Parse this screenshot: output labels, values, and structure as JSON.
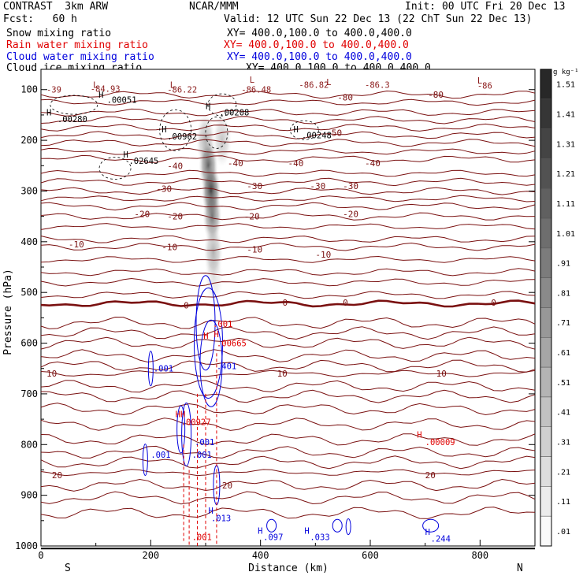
{
  "header": {
    "model": "CONTRAST  3km ARW",
    "center": "NCAR/MMM",
    "init": "Init: 00 UTC Fri 20 Dec 13",
    "fcst": "Fcst:   60 h",
    "valid": "Valid: 12 UTC Sun 22 Dec 13 (22 ChT Sun 22 Dec 13)"
  },
  "fields": [
    {
      "name": "Snow mixing ratio",
      "xy": "XY= 400.0,100.0 to 400.0,400.0",
      "color": "#000000"
    },
    {
      "name": "Rain water mixing ratio",
      "xy": "XY= 400.0,100.0 to 400.0,400.0",
      "color": "#e00000"
    },
    {
      "name": "Cloud water mixing ratio",
      "xy": "XY= 400.0,100.0 to 400.0,400.0",
      "color": "#0000dd"
    },
    {
      "name": "Cloud ice mixing ratio",
      "xy": "XY= 400.0,100.0 to 400.0,400.0",
      "color": "#000000"
    }
  ],
  "chart_data": {
    "type": "contour",
    "xlabel": "Distance (km)",
    "ylabel": "Pressure (hPa)",
    "xlim": [
      0,
      900
    ],
    "ylim": [
      1000,
      60
    ],
    "x_ticks": [
      0,
      200,
      400,
      600,
      800
    ],
    "y_ticks": [
      100,
      200,
      300,
      400,
      500,
      600,
      700,
      800,
      900,
      1000
    ],
    "left_end_label": "S",
    "right_end_label": "N",
    "temperature_isotherms": [
      {
        "label": "0",
        "p": 522,
        "bold": true
      },
      {
        "label": "-10",
        "p": 435
      },
      {
        "label": "-20",
        "p": 370
      },
      {
        "label": "-30",
        "p": 315
      },
      {
        "label": "-40",
        "p": 265
      },
      {
        "label": "-50",
        "p": 222
      },
      {
        "label": "-80",
        "p": 125
      },
      {
        "label": "10",
        "p": 660
      },
      {
        "label": "20",
        "p": 855
      }
    ],
    "temperature_labels": [
      {
        "text": "-10",
        "x": 50,
        "p": 405
      },
      {
        "text": "-10",
        "x": 220,
        "p": 410
      },
      {
        "text": "-10",
        "x": 375,
        "p": 415
      },
      {
        "text": "-10",
        "x": 500,
        "p": 425
      },
      {
        "text": "-20",
        "x": 170,
        "p": 345
      },
      {
        "text": "-20",
        "x": 230,
        "p": 350
      },
      {
        "text": "-20",
        "x": 370,
        "p": 350
      },
      {
        "text": "-20",
        "x": 550,
        "p": 345
      },
      {
        "text": "-30",
        "x": 210,
        "p": 295
      },
      {
        "text": "-30",
        "x": 375,
        "p": 290
      },
      {
        "text": "-30",
        "x": 490,
        "p": 290
      },
      {
        "text": "-30",
        "x": 550,
        "p": 290
      },
      {
        "text": "-40",
        "x": 230,
        "p": 250
      },
      {
        "text": "-40",
        "x": 340,
        "p": 245
      },
      {
        "text": "-40",
        "x": 450,
        "p": 245
      },
      {
        "text": "-40",
        "x": 590,
        "p": 245
      },
      {
        "text": "-50",
        "x": 520,
        "p": 185
      },
      {
        "text": "-80",
        "x": 540,
        "p": 115
      },
      {
        "text": "-80",
        "x": 705,
        "p": 110
      },
      {
        "text": "0",
        "x": 260,
        "p": 525
      },
      {
        "text": "0",
        "x": 440,
        "p": 520
      },
      {
        "text": "0",
        "x": 550,
        "p": 520
      },
      {
        "text": "0",
        "x": 820,
        "p": 520
      },
      {
        "text": "10",
        "x": 10,
        "p": 660
      },
      {
        "text": "10",
        "x": 430,
        "p": 660
      },
      {
        "text": "10",
        "x": 720,
        "p": 660
      },
      {
        "text": "20",
        "x": 20,
        "p": 860
      },
      {
        "text": "20",
        "x": 330,
        "p": 880
      },
      {
        "text": "20",
        "x": 700,
        "p": 860
      }
    ],
    "extrema_labels": [
      {
        "text": "L",
        "x": 95,
        "p": 90,
        "color": "#8b1a1a"
      },
      {
        "text": "L",
        "x": 235,
        "p": 90,
        "color": "#8b1a1a"
      },
      {
        "text": "L",
        "x": 380,
        "p": 80,
        "color": "#8b1a1a"
      },
      {
        "text": "L",
        "x": 520,
        "p": 85,
        "color": "#8b1a1a"
      },
      {
        "text": "L",
        "x": 795,
        "p": 82,
        "color": "#8b1a1a"
      },
      {
        "text": "-39",
        "x": 10,
        "p": 100,
        "color": "#8b1a1a"
      },
      {
        "text": "-84.93",
        "x": 90,
        "p": 98,
        "color": "#8b1a1a"
      },
      {
        "text": "-86.22",
        "x": 230,
        "p": 100,
        "color": "#8b1a1a"
      },
      {
        "text": "-86.48",
        "x": 365,
        "p": 100,
        "color": "#8b1a1a"
      },
      {
        "text": "-86.82",
        "x": 470,
        "p": 90,
        "color": "#8b1a1a"
      },
      {
        "text": "-86.3",
        "x": 590,
        "p": 90,
        "color": "#8b1a1a"
      },
      {
        "text": "-86",
        "x": 795,
        "p": 92,
        "color": "#8b1a1a"
      },
      {
        "text": "H",
        "x": 105,
        "p": 110,
        "color": "#000000"
      },
      {
        "text": ".00051",
        "x": 120,
        "p": 120,
        "color": "#000000"
      },
      {
        "text": "H",
        "x": 10,
        "p": 145,
        "color": "#000000"
      },
      {
        "text": ".00280",
        "x": 30,
        "p": 158,
        "color": "#000000"
      },
      {
        "text": "H",
        "x": 300,
        "p": 132,
        "color": "#000000"
      },
      {
        "text": ".00208",
        "x": 325,
        "p": 145,
        "color": "#000000"
      },
      {
        "text": "H",
        "x": 220,
        "p": 178,
        "color": "#000000"
      },
      {
        "text": ".00962",
        "x": 230,
        "p": 192,
        "color": "#000000"
      },
      {
        "text": "H",
        "x": 460,
        "p": 178,
        "color": "#000000"
      },
      {
        "text": ".00248",
        "x": 475,
        "p": 190,
        "color": "#000000"
      },
      {
        "text": "H",
        "x": 150,
        "p": 228,
        "color": "#000000"
      },
      {
        "text": ".02645",
        "x": 160,
        "p": 240,
        "color": "#000000"
      },
      {
        "text": ".001",
        "x": 313,
        "p": 562,
        "color": "#e00000"
      },
      {
        "text": "H",
        "x": 296,
        "p": 585,
        "color": "#e00000"
      },
      {
        "text": "H",
        "x": 315,
        "p": 582,
        "color": "#e00000"
      },
      {
        "text": ".00665",
        "x": 320,
        "p": 600,
        "color": "#e00000"
      },
      {
        "text": "HH",
        "x": 245,
        "p": 740,
        "color": "#e00000"
      },
      {
        "text": ".00927",
        "x": 255,
        "p": 755,
        "color": "#e00000"
      },
      {
        "text": "H",
        "x": 685,
        "p": 780,
        "color": "#e00000"
      },
      {
        "text": ".00009",
        "x": 700,
        "p": 795,
        "color": "#e00000"
      },
      {
        "text": ".001",
        "x": 275,
        "p": 982,
        "color": "#e00000"
      },
      {
        "text": ".401",
        "x": 320,
        "p": 645,
        "color": "#0000dd"
      },
      {
        "text": ".001",
        "x": 205,
        "p": 650,
        "color": "#0000dd"
      },
      {
        "text": ".001",
        "x": 280,
        "p": 795,
        "color": "#0000dd"
      },
      {
        "text": ".001",
        "x": 200,
        "p": 820,
        "color": "#0000dd"
      },
      {
        "text": ".001",
        "x": 275,
        "p": 820,
        "color": "#0000dd"
      },
      {
        "text": "H",
        "x": 305,
        "p": 930,
        "color": "#0000dd"
      },
      {
        "text": ".013",
        "x": 310,
        "p": 945,
        "color": "#0000dd"
      },
      {
        "text": "H",
        "x": 395,
        "p": 970,
        "color": "#0000dd"
      },
      {
        "text": ".097",
        "x": 405,
        "p": 982,
        "color": "#0000dd"
      },
      {
        "text": "H",
        "x": 480,
        "p": 970,
        "color": "#0000dd"
      },
      {
        "text": ".033",
        "x": 490,
        "p": 982,
        "color": "#0000dd"
      },
      {
        "text": "H",
        "x": 700,
        "p": 972,
        "color": "#0000dd"
      },
      {
        "text": ".244",
        "x": 710,
        "p": 985,
        "color": "#0000dd"
      }
    ],
    "snow_plume": [
      {
        "x": 300,
        "p": 200,
        "value": 0.4
      },
      {
        "x": 305,
        "p": 250,
        "value": 0.8
      },
      {
        "x": 310,
        "p": 300,
        "value": 1.0
      },
      {
        "x": 312,
        "p": 350,
        "value": 0.7
      },
      {
        "x": 314,
        "p": 420,
        "value": 0.4
      },
      {
        "x": 315,
        "p": 470,
        "value": 0.15
      },
      {
        "x": 330,
        "p": 200,
        "value": 0.3
      }
    ],
    "colorbar": {
      "units": "g kg⁻¹",
      "levels": [
        "1.51",
        "1.41",
        "1.31",
        "1.21",
        "1.11",
        "1.01",
        ".91",
        ".81",
        ".71",
        ".61",
        ".51",
        ".41",
        ".31",
        ".21",
        ".11",
        ".01"
      ]
    }
  }
}
